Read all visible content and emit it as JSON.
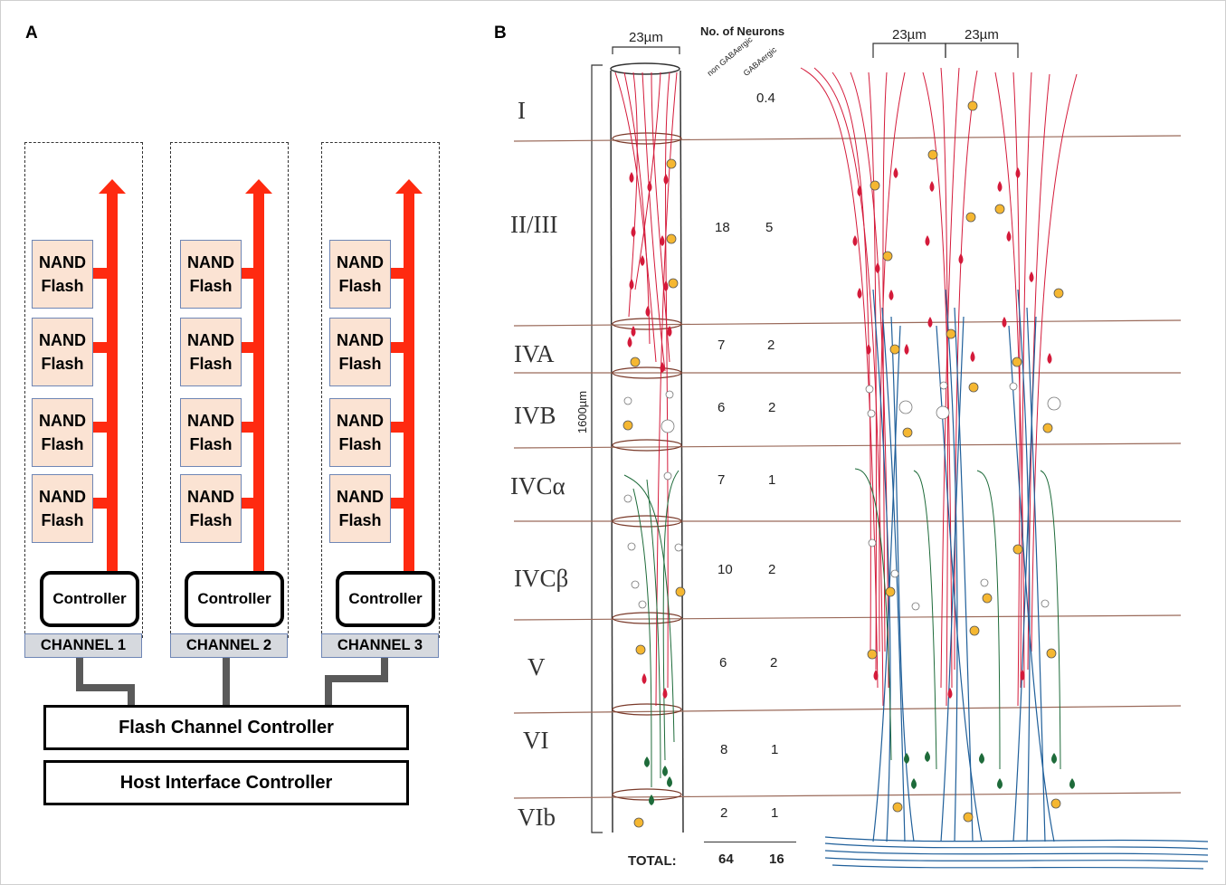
{
  "panel_a": {
    "label": "A",
    "channels": [
      {
        "nand_labels": [
          "NAND\nFlash",
          "NAND\nFlash",
          "NAND\nFlash",
          "NAND\nFlash"
        ],
        "controller_label": "Controller",
        "channel_label": "CHANNEL 1"
      },
      {
        "nand_labels": [
          "NAND\nFlash",
          "NAND\nFlash",
          "NAND\nFlash",
          "NAND\nFlash"
        ],
        "controller_label": "Controller",
        "channel_label": "CHANNEL 2"
      },
      {
        "nand_labels": [
          "NAND\nFlash",
          "NAND\nFlash",
          "NAND\nFlash",
          "NAND\nFlash"
        ],
        "controller_label": "Controller",
        "channel_label": "CHANNEL 3"
      }
    ],
    "flash_channel_controller": "Flash Channel Controller",
    "host_interface_controller": "Host Interface Controller",
    "colors": {
      "bus_red": "#ff2a10",
      "nand_fill": "#fbe3d3",
      "channel_fill": "#d6d9de",
      "wire_gray": "#5a5a5a"
    }
  },
  "panel_b": {
    "label": "B",
    "column_width_label": "23µm",
    "right_width_labels": [
      "23µm",
      "23µm"
    ],
    "depth_label": "1600µm",
    "header": "No. of Neurons",
    "subheaders": [
      "non GABAergic",
      "GABAergic"
    ],
    "layers": [
      {
        "name": "I",
        "non_gaba": "",
        "gaba": "0.4"
      },
      {
        "name": "II/III",
        "non_gaba": "18",
        "gaba": "5"
      },
      {
        "name": "IVA",
        "non_gaba": "7",
        "gaba": "2"
      },
      {
        "name": "IVB",
        "non_gaba": "6",
        "gaba": "2"
      },
      {
        "name": "IVCα",
        "non_gaba": "7",
        "gaba": "1"
      },
      {
        "name": "IVCβ",
        "non_gaba": "10",
        "gaba": "2"
      },
      {
        "name": "V",
        "non_gaba": "6",
        "gaba": "2"
      },
      {
        "name": "VI",
        "non_gaba": "8",
        "gaba": "1"
      },
      {
        "name": "VIb",
        "non_gaba": "2",
        "gaba": "1"
      }
    ],
    "total_label": "TOTAL:",
    "total_non_gaba": "64",
    "total_gaba": "16",
    "colors": {
      "red_neuron": "#d41a3a",
      "green_neuron": "#1e6b3a",
      "blue_axon": "#1f5f9a",
      "yellow_cell": "#f5b731",
      "line_brown": "#9a6a5a"
    }
  }
}
